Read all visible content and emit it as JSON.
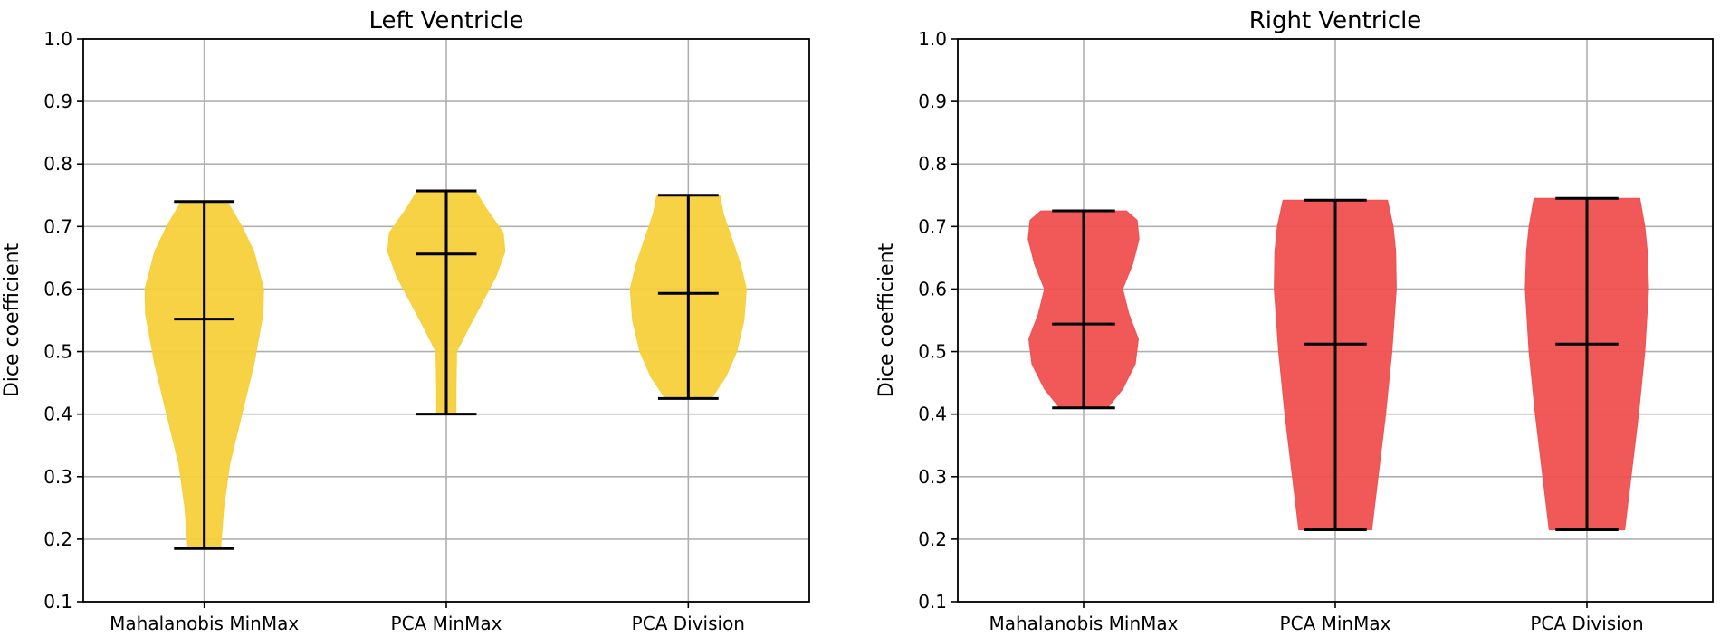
{
  "chart_data": [
    {
      "type": "violin",
      "title": "Left Ventricle",
      "xlabel": "",
      "ylabel": "Dice coefficient",
      "ylim": [
        0.1,
        1.0
      ],
      "yticks": [
        "0.1",
        "0.2",
        "0.3",
        "0.4",
        "0.5",
        "0.6",
        "0.7",
        "0.8",
        "0.9",
        "1.0"
      ],
      "grid": true,
      "color": "#F5D03A",
      "categories": [
        "Mahalanobis MinMax",
        "PCA MinMax",
        "PCA Division"
      ],
      "violins": [
        {
          "category": "Mahalanobis MinMax",
          "min": 0.185,
          "max": 0.74,
          "median": 0.552,
          "profile": [
            [
              0.185,
              0.27
            ],
            [
              0.25,
              0.32
            ],
            [
              0.32,
              0.42
            ],
            [
              0.4,
              0.62
            ],
            [
              0.48,
              0.82
            ],
            [
              0.56,
              0.97
            ],
            [
              0.6,
              0.98
            ],
            [
              0.66,
              0.82
            ],
            [
              0.7,
              0.62
            ],
            [
              0.74,
              0.38
            ]
          ]
        },
        {
          "category": "PCA MinMax",
          "min": 0.4,
          "max": 0.757,
          "median": 0.656,
          "profile": [
            [
              0.4,
              0.16
            ],
            [
              0.44,
              0.16
            ],
            [
              0.5,
              0.17
            ],
            [
              0.54,
              0.38
            ],
            [
              0.58,
              0.6
            ],
            [
              0.62,
              0.82
            ],
            [
              0.66,
              0.97
            ],
            [
              0.69,
              0.94
            ],
            [
              0.73,
              0.65
            ],
            [
              0.757,
              0.48
            ]
          ]
        },
        {
          "category": "PCA Division",
          "min": 0.425,
          "max": 0.75,
          "median": 0.593,
          "profile": [
            [
              0.425,
              0.38
            ],
            [
              0.46,
              0.62
            ],
            [
              0.5,
              0.8
            ],
            [
              0.55,
              0.92
            ],
            [
              0.6,
              0.96
            ],
            [
              0.64,
              0.86
            ],
            [
              0.68,
              0.72
            ],
            [
              0.72,
              0.58
            ],
            [
              0.75,
              0.52
            ]
          ]
        }
      ]
    },
    {
      "type": "violin",
      "title": "Right Ventricle",
      "xlabel": "",
      "ylabel": "Dice coefficient",
      "ylim": [
        0.1,
        1.0
      ],
      "yticks": [
        "0.1",
        "0.2",
        "0.3",
        "0.4",
        "0.5",
        "0.6",
        "0.7",
        "0.8",
        "0.9",
        "1.0"
      ],
      "grid": true,
      "color": "#F05050",
      "categories": [
        "Mahalanobis MinMax",
        "PCA MinMax",
        "PCA Division"
      ],
      "violins": [
        {
          "category": "Mahalanobis MinMax",
          "min": 0.41,
          "max": 0.725,
          "median": 0.544,
          "profile": [
            [
              0.41,
              0.38
            ],
            [
              0.44,
              0.62
            ],
            [
              0.48,
              0.82
            ],
            [
              0.52,
              0.87
            ],
            [
              0.56,
              0.72
            ],
            [
              0.6,
              0.62
            ],
            [
              0.64,
              0.78
            ],
            [
              0.68,
              0.88
            ],
            [
              0.71,
              0.85
            ],
            [
              0.725,
              0.68
            ]
          ]
        },
        {
          "category": "PCA MinMax",
          "min": 0.215,
          "max": 0.742,
          "median": 0.512,
          "profile": [
            [
              0.215,
              0.58
            ],
            [
              0.3,
              0.68
            ],
            [
              0.4,
              0.8
            ],
            [
              0.5,
              0.9
            ],
            [
              0.6,
              0.97
            ],
            [
              0.66,
              0.96
            ],
            [
              0.7,
              0.92
            ],
            [
              0.742,
              0.83
            ]
          ]
        },
        {
          "category": "PCA Division",
          "min": 0.215,
          "max": 0.745,
          "median": 0.512,
          "profile": [
            [
              0.215,
              0.6
            ],
            [
              0.3,
              0.7
            ],
            [
              0.4,
              0.82
            ],
            [
              0.5,
              0.92
            ],
            [
              0.6,
              0.98
            ],
            [
              0.66,
              0.96
            ],
            [
              0.7,
              0.92
            ],
            [
              0.745,
              0.84
            ]
          ]
        }
      ]
    }
  ]
}
